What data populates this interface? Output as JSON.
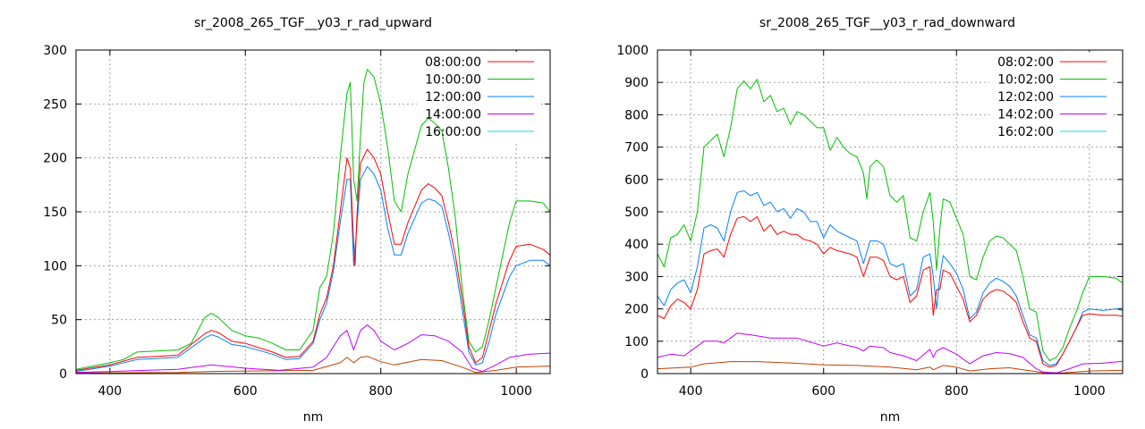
{
  "chart_data": [
    {
      "type": "line",
      "title": "sr_2008_265_TGF__y03_r_rad_upward",
      "xlabel": "nm",
      "ylabel": "",
      "xlim": [
        350,
        1050
      ],
      "ylim": [
        0,
        300
      ],
      "xticks": [
        400,
        600,
        800,
        1000
      ],
      "yticks": [
        0,
        50,
        100,
        150,
        200,
        250,
        300
      ],
      "grid": true,
      "legend_position": "top-right",
      "series": [
        {
          "name": "08:00:00",
          "color": "#ff0000",
          "legend_color": "#ff0000",
          "x": [
            350,
            400,
            440,
            500,
            540,
            550,
            560,
            580,
            600,
            640,
            660,
            680,
            700,
            710,
            720,
            730,
            740,
            750,
            755,
            760,
            762,
            765,
            770,
            780,
            790,
            800,
            810,
            820,
            830,
            840,
            860,
            870,
            880,
            890,
            900,
            910,
            920,
            930,
            940,
            950,
            960,
            970,
            990,
            1000,
            1020,
            1040,
            1050
          ],
          "y": [
            3,
            8,
            15,
            17,
            37,
            40,
            38,
            30,
            28,
            20,
            15,
            16,
            30,
            55,
            70,
            100,
            150,
            200,
            190,
            120,
            100,
            150,
            195,
            208,
            200,
            185,
            150,
            120,
            120,
            140,
            170,
            176,
            172,
            165,
            140,
            110,
            70,
            25,
            10,
            15,
            40,
            65,
            105,
            118,
            120,
            115,
            110
          ]
        },
        {
          "name": "10:00:00",
          "color": "#00c000",
          "legend_color": "#00c000",
          "x": [
            350,
            400,
            420,
            440,
            500,
            520,
            540,
            550,
            560,
            580,
            600,
            620,
            640,
            660,
            680,
            700,
            710,
            720,
            730,
            740,
            750,
            755,
            760,
            765,
            770,
            775,
            780,
            790,
            800,
            810,
            820,
            830,
            840,
            860,
            870,
            880,
            890,
            900,
            910,
            920,
            930,
            940,
            950,
            960,
            970,
            990,
            1000,
            1020,
            1040,
            1050
          ],
          "y": [
            4,
            10,
            13,
            20,
            22,
            28,
            52,
            56,
            52,
            40,
            35,
            33,
            28,
            22,
            22,
            40,
            80,
            90,
            130,
            200,
            260,
            270,
            180,
            160,
            220,
            270,
            282,
            275,
            250,
            210,
            160,
            150,
            185,
            230,
            237,
            232,
            225,
            190,
            145,
            80,
            30,
            20,
            25,
            50,
            80,
            140,
            160,
            160,
            158,
            150
          ]
        },
        {
          "name": "12:00:00",
          "color": "#0080ff",
          "legend_color": "#0080ff",
          "x": [
            350,
            400,
            440,
            500,
            540,
            550,
            560,
            580,
            600,
            640,
            660,
            680,
            700,
            710,
            720,
            730,
            740,
            750,
            755,
            760,
            765,
            770,
            780,
            790,
            800,
            810,
            820,
            830,
            840,
            860,
            870,
            880,
            890,
            900,
            910,
            920,
            930,
            940,
            950,
            960,
            970,
            990,
            1000,
            1020,
            1040,
            1050
          ],
          "y": [
            2,
            7,
            13,
            15,
            33,
            36,
            34,
            27,
            25,
            18,
            13,
            14,
            28,
            50,
            65,
            95,
            140,
            180,
            180,
            100,
            140,
            180,
            192,
            185,
            170,
            135,
            110,
            110,
            130,
            158,
            162,
            160,
            155,
            130,
            100,
            60,
            20,
            8,
            10,
            30,
            55,
            90,
            100,
            105,
            105,
            100
          ]
        },
        {
          "name": "14:00:00",
          "color": "#c000ff",
          "legend_color": "#c000ff",
          "x": [
            350,
            400,
            500,
            550,
            600,
            650,
            700,
            720,
            740,
            750,
            760,
            770,
            780,
            790,
            800,
            820,
            840,
            860,
            880,
            900,
            920,
            935,
            950,
            970,
            990,
            1020,
            1050
          ],
          "y": [
            1,
            2,
            4,
            8,
            5,
            3,
            6,
            15,
            35,
            40,
            22,
            40,
            45,
            40,
            30,
            22,
            28,
            36,
            35,
            30,
            20,
            5,
            2,
            8,
            15,
            18,
            19
          ]
        },
        {
          "name": "16:00:00",
          "color": "#c04000",
          "legend_color": "#00e0e0",
          "x": [
            350,
            500,
            550,
            700,
            740,
            750,
            760,
            770,
            780,
            800,
            820,
            860,
            890,
            920,
            940,
            970,
            1000,
            1050
          ],
          "y": [
            0.5,
            1,
            2,
            3,
            10,
            15,
            10,
            15,
            16,
            11,
            8,
            13,
            12,
            6,
            1,
            3,
            6,
            7
          ]
        }
      ]
    },
    {
      "type": "line",
      "title": "sr_2008_265_TGF__y03_r_rad_downward",
      "xlabel": "nm",
      "ylabel": "",
      "xlim": [
        350,
        1050
      ],
      "ylim": [
        0,
        1000
      ],
      "xticks": [
        400,
        600,
        800,
        1000
      ],
      "yticks": [
        0,
        100,
        200,
        300,
        400,
        500,
        600,
        700,
        800,
        900,
        1000
      ],
      "grid": true,
      "legend_position": "top-right",
      "series": [
        {
          "name": "08:02:00",
          "color": "#ff0000",
          "legend_color": "#ff0000",
          "x": [
            350,
            360,
            370,
            380,
            390,
            400,
            410,
            420,
            430,
            440,
            450,
            460,
            470,
            480,
            490,
            500,
            510,
            520,
            530,
            540,
            550,
            560,
            570,
            580,
            590,
            600,
            610,
            620,
            640,
            650,
            660,
            670,
            680,
            690,
            700,
            710,
            720,
            730,
            740,
            750,
            760,
            765,
            770,
            775,
            780,
            790,
            800,
            810,
            820,
            830,
            840,
            850,
            860,
            870,
            880,
            890,
            900,
            910,
            920,
            930,
            940,
            950,
            960,
            970,
            980,
            990,
            1000,
            1020,
            1040,
            1050
          ],
          "y": [
            180,
            170,
            210,
            230,
            220,
            200,
            260,
            370,
            380,
            385,
            360,
            430,
            480,
            485,
            470,
            485,
            440,
            460,
            430,
            440,
            430,
            430,
            415,
            410,
            400,
            370,
            390,
            380,
            370,
            360,
            300,
            360,
            360,
            350,
            300,
            290,
            300,
            220,
            240,
            320,
            330,
            180,
            260,
            260,
            320,
            310,
            270,
            230,
            160,
            180,
            230,
            250,
            260,
            255,
            240,
            220,
            160,
            110,
            100,
            30,
            20,
            25,
            60,
            100,
            140,
            180,
            185,
            180,
            180,
            178
          ]
        },
        {
          "name": "10:02:00",
          "color": "#00c000",
          "legend_color": "#00c000",
          "x": [
            350,
            360,
            370,
            380,
            390,
            400,
            410,
            420,
            430,
            440,
            450,
            460,
            470,
            480,
            490,
            500,
            510,
            520,
            530,
            540,
            550,
            560,
            570,
            580,
            590,
            600,
            610,
            620,
            630,
            640,
            650,
            660,
            665,
            670,
            680,
            690,
            700,
            710,
            720,
            730,
            740,
            750,
            760,
            765,
            770,
            775,
            780,
            790,
            800,
            810,
            820,
            830,
            840,
            850,
            860,
            870,
            880,
            890,
            900,
            910,
            920,
            930,
            940,
            950,
            960,
            970,
            980,
            990,
            1000,
            1020,
            1040,
            1050
          ],
          "y": [
            370,
            330,
            420,
            430,
            460,
            410,
            500,
            700,
            720,
            740,
            670,
            760,
            880,
            905,
            880,
            910,
            840,
            860,
            810,
            820,
            770,
            810,
            800,
            780,
            760,
            760,
            690,
            730,
            700,
            680,
            670,
            620,
            540,
            640,
            660,
            640,
            550,
            530,
            550,
            420,
            410,
            500,
            560,
            470,
            320,
            450,
            540,
            530,
            480,
            430,
            300,
            290,
            360,
            410,
            425,
            420,
            400,
            380,
            300,
            200,
            190,
            70,
            40,
            50,
            80,
            140,
            190,
            250,
            300,
            300,
            295,
            280
          ]
        },
        {
          "name": "12:02:00",
          "color": "#0080ff",
          "legend_color": "#0080ff",
          "x": [
            350,
            360,
            370,
            380,
            390,
            400,
            410,
            420,
            430,
            440,
            450,
            460,
            470,
            480,
            490,
            500,
            510,
            520,
            530,
            540,
            550,
            560,
            570,
            580,
            590,
            600,
            610,
            620,
            640,
            650,
            660,
            670,
            680,
            690,
            700,
            710,
            720,
            730,
            740,
            750,
            760,
            765,
            770,
            775,
            780,
            790,
            800,
            810,
            820,
            830,
            840,
            850,
            860,
            870,
            880,
            890,
            900,
            910,
            920,
            930,
            940,
            950,
            960,
            970,
            980,
            990,
            1000,
            1020,
            1040,
            1050
          ],
          "y": [
            240,
            210,
            260,
            280,
            290,
            250,
            330,
            450,
            460,
            450,
            410,
            500,
            560,
            565,
            550,
            560,
            520,
            530,
            500,
            510,
            480,
            510,
            500,
            470,
            470,
            420,
            460,
            440,
            420,
            410,
            340,
            410,
            410,
            400,
            340,
            330,
            340,
            240,
            260,
            360,
            370,
            300,
            200,
            300,
            365,
            340,
            310,
            260,
            170,
            190,
            250,
            280,
            295,
            285,
            270,
            240,
            180,
            120,
            110,
            40,
            25,
            30,
            60,
            100,
            140,
            190,
            200,
            195,
            200,
            195
          ]
        },
        {
          "name": "14:02:00",
          "color": "#c000ff",
          "legend_color": "#c000ff",
          "x": [
            350,
            370,
            390,
            410,
            420,
            440,
            450,
            470,
            490,
            520,
            560,
            600,
            620,
            650,
            660,
            670,
            690,
            700,
            720,
            740,
            760,
            765,
            770,
            780,
            800,
            820,
            840,
            860,
            880,
            900,
            920,
            930,
            950,
            970,
            990,
            1020,
            1050
          ],
          "y": [
            50,
            60,
            55,
            85,
            100,
            100,
            95,
            125,
            120,
            110,
            110,
            85,
            95,
            80,
            70,
            85,
            80,
            65,
            55,
            40,
            75,
            50,
            70,
            80,
            60,
            30,
            55,
            65,
            62,
            50,
            15,
            5,
            2,
            15,
            30,
            32,
            38
          ]
        },
        {
          "name": "16:02:00",
          "color": "#c04000",
          "legend_color": "#00e0e0",
          "x": [
            350,
            400,
            420,
            460,
            500,
            550,
            600,
            650,
            700,
            740,
            760,
            765,
            780,
            800,
            820,
            850,
            880,
            900,
            930,
            960,
            1000,
            1050
          ],
          "y": [
            15,
            20,
            30,
            37,
            37,
            33,
            27,
            25,
            20,
            12,
            20,
            12,
            25,
            20,
            8,
            15,
            18,
            12,
            3,
            2,
            8,
            10
          ]
        }
      ]
    }
  ]
}
